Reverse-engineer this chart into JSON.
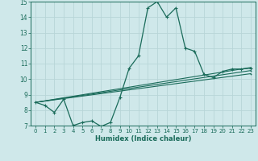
{
  "xlabel": "Humidex (Indice chaleur)",
  "bg_color": "#cfe8ea",
  "grid_color": "#b8d5d8",
  "line_color": "#1a6b5a",
  "xlim": [
    -0.5,
    23.5
  ],
  "ylim": [
    7,
    15
  ],
  "xticks": [
    0,
    1,
    2,
    3,
    4,
    5,
    6,
    7,
    8,
    9,
    10,
    11,
    12,
    13,
    14,
    15,
    16,
    17,
    18,
    19,
    20,
    21,
    22,
    23
  ],
  "yticks": [
    7,
    8,
    9,
    10,
    11,
    12,
    13,
    14,
    15
  ],
  "main_series": {
    "x": [
      0,
      1,
      2,
      3,
      4,
      5,
      6,
      7,
      8,
      9,
      10,
      11,
      12,
      13,
      14,
      15,
      16,
      17,
      18,
      19,
      20,
      21,
      22,
      23
    ],
    "y": [
      8.5,
      8.3,
      7.85,
      8.7,
      7.0,
      7.2,
      7.3,
      6.95,
      7.2,
      8.8,
      10.7,
      11.5,
      14.6,
      15.0,
      14.0,
      14.6,
      12.0,
      11.8,
      10.3,
      10.1,
      10.5,
      10.65,
      10.65,
      10.7
    ]
  },
  "linear_series": [
    {
      "x": [
        0,
        23
      ],
      "y": [
        8.5,
        10.75
      ]
    },
    {
      "x": [
        0,
        23
      ],
      "y": [
        8.5,
        10.55
      ]
    },
    {
      "x": [
        0,
        23
      ],
      "y": [
        8.5,
        10.35
      ]
    }
  ]
}
